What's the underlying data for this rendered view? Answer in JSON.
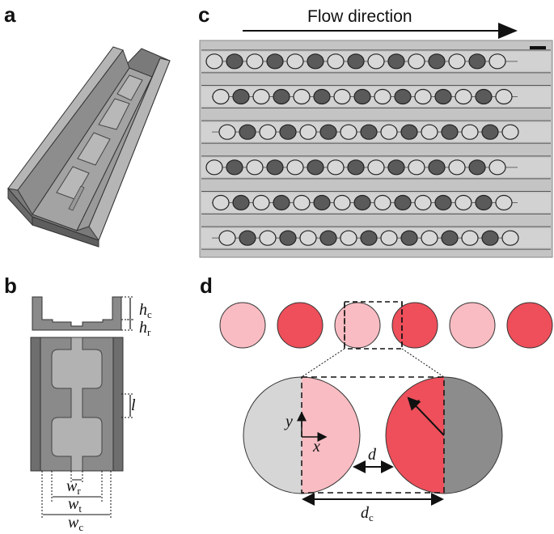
{
  "panels": {
    "a": {
      "label": "a"
    },
    "b": {
      "label": "b",
      "h_c": {
        "sym": "h",
        "sub": "c"
      },
      "h_r": {
        "sym": "h",
        "sub": "r"
      },
      "l": {
        "sym": "l"
      },
      "w_r": {
        "sym": "w",
        "sub": "r"
      },
      "w_t": {
        "sym": "w",
        "sub": "t"
      },
      "w_c": {
        "sym": "w",
        "sub": "c"
      }
    },
    "c": {
      "label": "c",
      "flow_text": "Flow direction",
      "channel_count": 6,
      "droplets_per_channel": 15
    },
    "d": {
      "label": "d",
      "top_row_colors": [
        "#f8bcc2",
        "#ee4f5a",
        "#f8bcc2",
        "#ee4f5a",
        "#f8bcc2",
        "#ee4f5a"
      ],
      "left_circle_colors": [
        "#d6d6d6",
        "#f8bcc2"
      ],
      "right_circle_colors": [
        "#ee4f5a",
        "#8c8c8c"
      ],
      "y": {
        "sym": "y"
      },
      "x": {
        "sym": "x"
      },
      "r": {
        "sym": "r"
      },
      "d": {
        "sym": "d"
      },
      "d_c": {
        "sym": "d",
        "sub": "c"
      }
    }
  }
}
